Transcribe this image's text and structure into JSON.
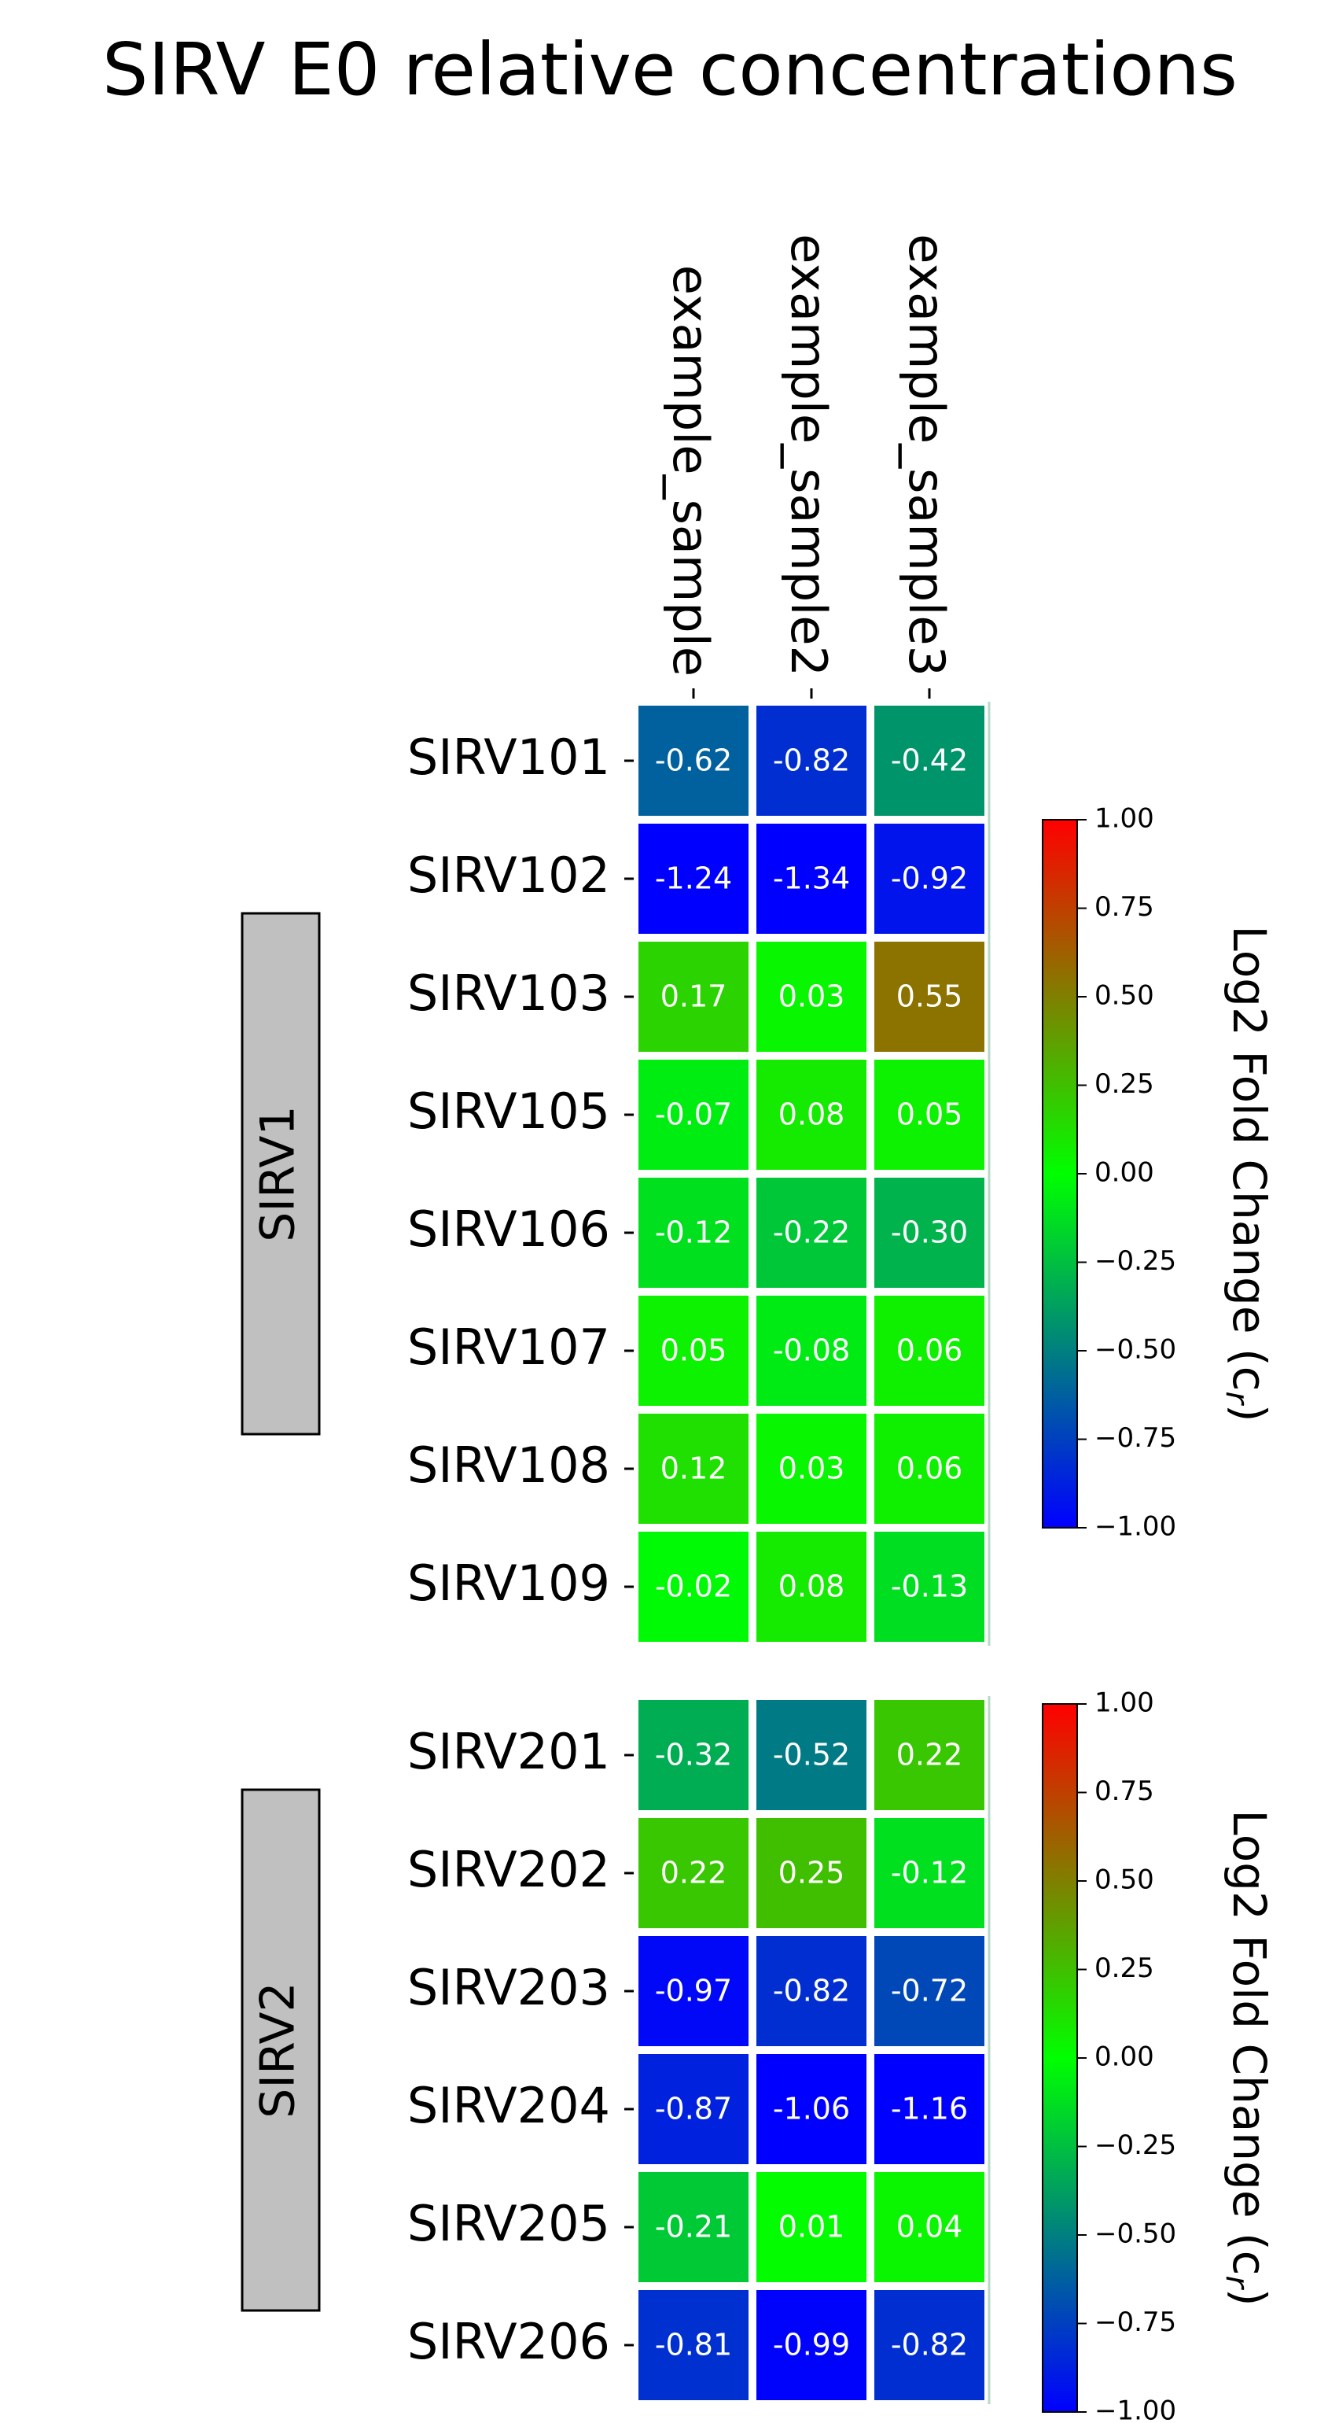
{
  "chart_data": {
    "type": "heatmap",
    "title": "SIRV E0 relative concentrations",
    "columns": [
      "example_sample",
      "example_sample2",
      "example_sample3"
    ],
    "groups": [
      {
        "name": "SIRV1",
        "rows": [
          "SIRV101",
          "SIRV102",
          "SIRV103",
          "SIRV105",
          "SIRV106",
          "SIRV107",
          "SIRV108",
          "SIRV109"
        ],
        "values": [
          [
            -0.62,
            -0.82,
            -0.42
          ],
          [
            -1.24,
            -1.34,
            -0.92
          ],
          [
            0.17,
            0.03,
            0.55
          ],
          [
            -0.07,
            0.08,
            0.05
          ],
          [
            -0.12,
            -0.22,
            -0.3
          ],
          [
            0.05,
            -0.08,
            0.06
          ],
          [
            0.12,
            0.03,
            0.06
          ],
          [
            -0.02,
            0.08,
            -0.13
          ]
        ]
      },
      {
        "name": "SIRV2",
        "rows": [
          "SIRV201",
          "SIRV202",
          "SIRV203",
          "SIRV204",
          "SIRV205",
          "SIRV206"
        ],
        "values": [
          [
            -0.32,
            -0.52,
            0.22
          ],
          [
            0.22,
            0.25,
            -0.12
          ],
          [
            -0.97,
            -0.82,
            -0.72
          ],
          [
            -0.87,
            -1.06,
            -1.16
          ],
          [
            -0.21,
            0.01,
            0.04
          ],
          [
            -0.81,
            -0.99,
            -0.82
          ]
        ]
      }
    ],
    "colorbar": {
      "label": "Log2 Fold Change (c",
      "label_subscript": "r",
      "label_close": ")",
      "range": [
        -1.0,
        1.0
      ],
      "ticks": [
        1.0,
        0.75,
        0.5,
        0.25,
        0.0,
        -0.25,
        -0.5,
        -0.75,
        -1.0
      ],
      "tick_labels": [
        "1.00",
        "0.75",
        "0.50",
        "0.25",
        "0.00",
        "−0.25",
        "−0.50",
        "−0.75",
        "−1.00"
      ],
      "colors": {
        "low": "#0000ff",
        "mid": "#00ff00",
        "high": "#ff0000"
      }
    },
    "cell_text_color": "#ffffff",
    "group_box_color": "#c0c0c0"
  }
}
